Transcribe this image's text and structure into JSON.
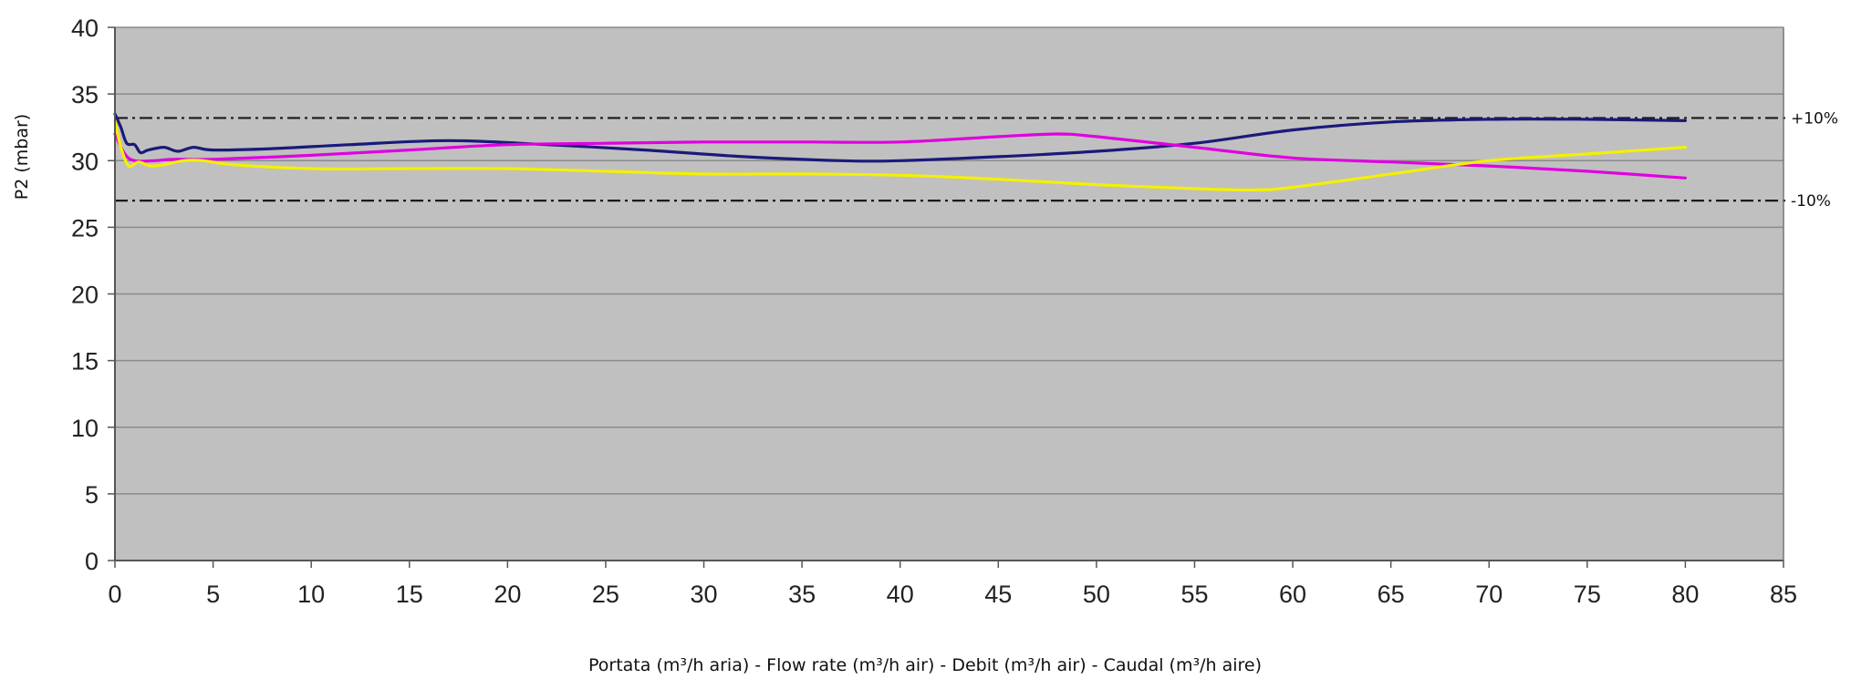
{
  "chart_data": {
    "type": "line",
    "xlabel": "Portata (m³/h aria) - Flow rate (m³/h air) - Debit (m³/h air) - Caudal (m³/h aire)",
    "ylabel": "P2 (mbar)",
    "xlim": [
      0,
      85
    ],
    "ylim": [
      0,
      40
    ],
    "xticks": [
      "0",
      "5",
      "10",
      "15",
      "20",
      "25",
      "30",
      "35",
      "40",
      "45",
      "50",
      "55",
      "60",
      "65",
      "70",
      "75",
      "80",
      "85"
    ],
    "yticks": [
      "0",
      "5",
      "10",
      "15",
      "20",
      "25",
      "30",
      "35",
      "40"
    ],
    "grid": "horizontal",
    "plot_background": "#c0c0c0",
    "reference_lines": [
      {
        "label": "+10%",
        "y": 33.2
      },
      {
        "label": "-10%",
        "y": 27.0
      }
    ],
    "series": [
      {
        "color": "#1a1a7a",
        "x": [
          0,
          0.3,
          0.6,
          1,
          1.3,
          1.7,
          2.5,
          3.2,
          4,
          5,
          8,
          12,
          17,
          22,
          27,
          32,
          37,
          40,
          45,
          50,
          55,
          60,
          65,
          70,
          75,
          80
        ],
        "y": [
          33.5,
          32.5,
          31.3,
          31.2,
          30.6,
          30.8,
          31.0,
          30.7,
          31.0,
          30.8,
          30.9,
          31.2,
          31.5,
          31.2,
          30.8,
          30.3,
          30.0,
          30.0,
          30.3,
          30.7,
          31.3,
          32.3,
          32.9,
          33.1,
          33.1,
          33.0
        ]
      },
      {
        "color": "#e000e0",
        "x": [
          0,
          0.5,
          1,
          2,
          3,
          5,
          10,
          15,
          20,
          25,
          30,
          35,
          40,
          45,
          48,
          50,
          55,
          60,
          65,
          70,
          75,
          80
        ],
        "y": [
          32.0,
          30.5,
          30.0,
          30.0,
          30.1,
          30.1,
          30.4,
          30.8,
          31.2,
          31.3,
          31.4,
          31.4,
          31.4,
          31.8,
          32.0,
          31.8,
          31.0,
          30.2,
          29.9,
          29.6,
          29.2,
          28.7
        ]
      },
      {
        "color": "#f4f000",
        "x": [
          0,
          0.3,
          0.7,
          1.2,
          1.8,
          2.5,
          3.5,
          4.5,
          6,
          10,
          15,
          20,
          25,
          30,
          35,
          40,
          45,
          50,
          55,
          58,
          60,
          65,
          70,
          75,
          80
        ],
        "y": [
          33.0,
          31.0,
          29.6,
          29.9,
          29.6,
          29.7,
          30.0,
          30.0,
          29.7,
          29.4,
          29.4,
          29.4,
          29.2,
          29.0,
          29.0,
          28.9,
          28.6,
          28.2,
          27.9,
          27.8,
          28.0,
          29.0,
          30.0,
          30.5,
          31.0
        ]
      }
    ]
  }
}
